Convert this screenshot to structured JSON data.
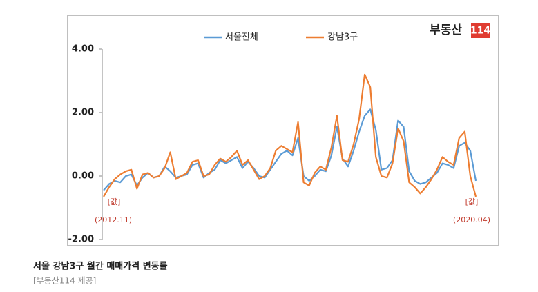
{
  "chart_data": {
    "type": "line",
    "logo": {
      "brand": "부동산",
      "number": "114"
    },
    "categories": [
      "(2012.11)",
      null,
      null,
      null,
      null,
      null,
      null,
      null,
      null,
      null,
      null,
      null,
      null,
      null,
      null,
      null,
      null,
      null,
      null,
      null,
      null,
      null,
      null,
      null,
      null,
      null,
      null,
      null,
      null,
      null,
      null,
      null,
      null,
      null,
      null,
      null,
      null,
      null,
      null,
      null,
      null,
      null,
      null,
      null,
      null,
      null,
      null,
      null,
      null,
      null,
      null,
      null,
      null,
      null,
      null,
      null,
      null,
      null,
      null,
      null,
      null,
      null,
      null,
      null,
      null,
      null,
      null,
      "(2020.04)"
    ],
    "series": [
      {
        "name": "서울전체",
        "color": "#5b9bd5",
        "values": [
          -0.45,
          -0.25,
          -0.15,
          -0.2,
          0.0,
          0.05,
          -0.3,
          -0.05,
          0.1,
          -0.05,
          0.0,
          0.3,
          0.15,
          -0.05,
          0.0,
          0.05,
          0.35,
          0.4,
          -0.05,
          0.1,
          0.2,
          0.5,
          0.4,
          0.5,
          0.6,
          0.25,
          0.45,
          0.25,
          0.0,
          -0.05,
          0.2,
          0.45,
          0.7,
          0.8,
          0.65,
          1.2,
          0.0,
          -0.15,
          0.0,
          0.2,
          0.15,
          0.65,
          1.55,
          0.55,
          0.3,
          0.8,
          1.4,
          1.9,
          2.1,
          1.45,
          0.2,
          0.25,
          0.5,
          1.75,
          1.55,
          0.15,
          -0.15,
          -0.25,
          -0.2,
          -0.05,
          0.1,
          0.4,
          0.35,
          0.25,
          0.95,
          1.05,
          0.8,
          -0.15
        ]
      },
      {
        "name": "강남3구",
        "color": "#ed7d31",
        "values": [
          -0.65,
          -0.35,
          -0.1,
          0.05,
          0.15,
          0.2,
          -0.4,
          0.05,
          0.1,
          -0.05,
          0.0,
          0.25,
          0.75,
          -0.1,
          0.0,
          0.1,
          0.45,
          0.5,
          0.0,
          0.05,
          0.35,
          0.55,
          0.45,
          0.6,
          0.8,
          0.35,
          0.5,
          0.2,
          -0.1,
          0.0,
          0.25,
          0.8,
          0.95,
          0.85,
          0.75,
          1.7,
          -0.2,
          -0.3,
          0.1,
          0.3,
          0.2,
          0.9,
          1.9,
          0.5,
          0.45,
          1.0,
          1.8,
          3.2,
          2.8,
          0.6,
          0.0,
          -0.05,
          0.4,
          1.5,
          1.1,
          -0.2,
          -0.35,
          -0.55,
          -0.35,
          -0.1,
          0.2,
          0.6,
          0.45,
          0.35,
          1.2,
          1.4,
          0.0,
          -0.65
        ]
      }
    ],
    "annotations": [
      "[값]",
      "[값]"
    ],
    "ylim": [
      -2,
      4
    ],
    "yticks": [
      {
        "value": 4,
        "label": "4.00"
      },
      {
        "value": 2,
        "label": "2.00"
      },
      {
        "value": 0,
        "label": "0.00"
      },
      {
        "value": -2,
        "label": "-2.00"
      }
    ],
    "legend": "top"
  },
  "caption": {
    "title": "서울 강남3구 월간 매매가격 변동률",
    "source": "[부동산114 제공]"
  }
}
